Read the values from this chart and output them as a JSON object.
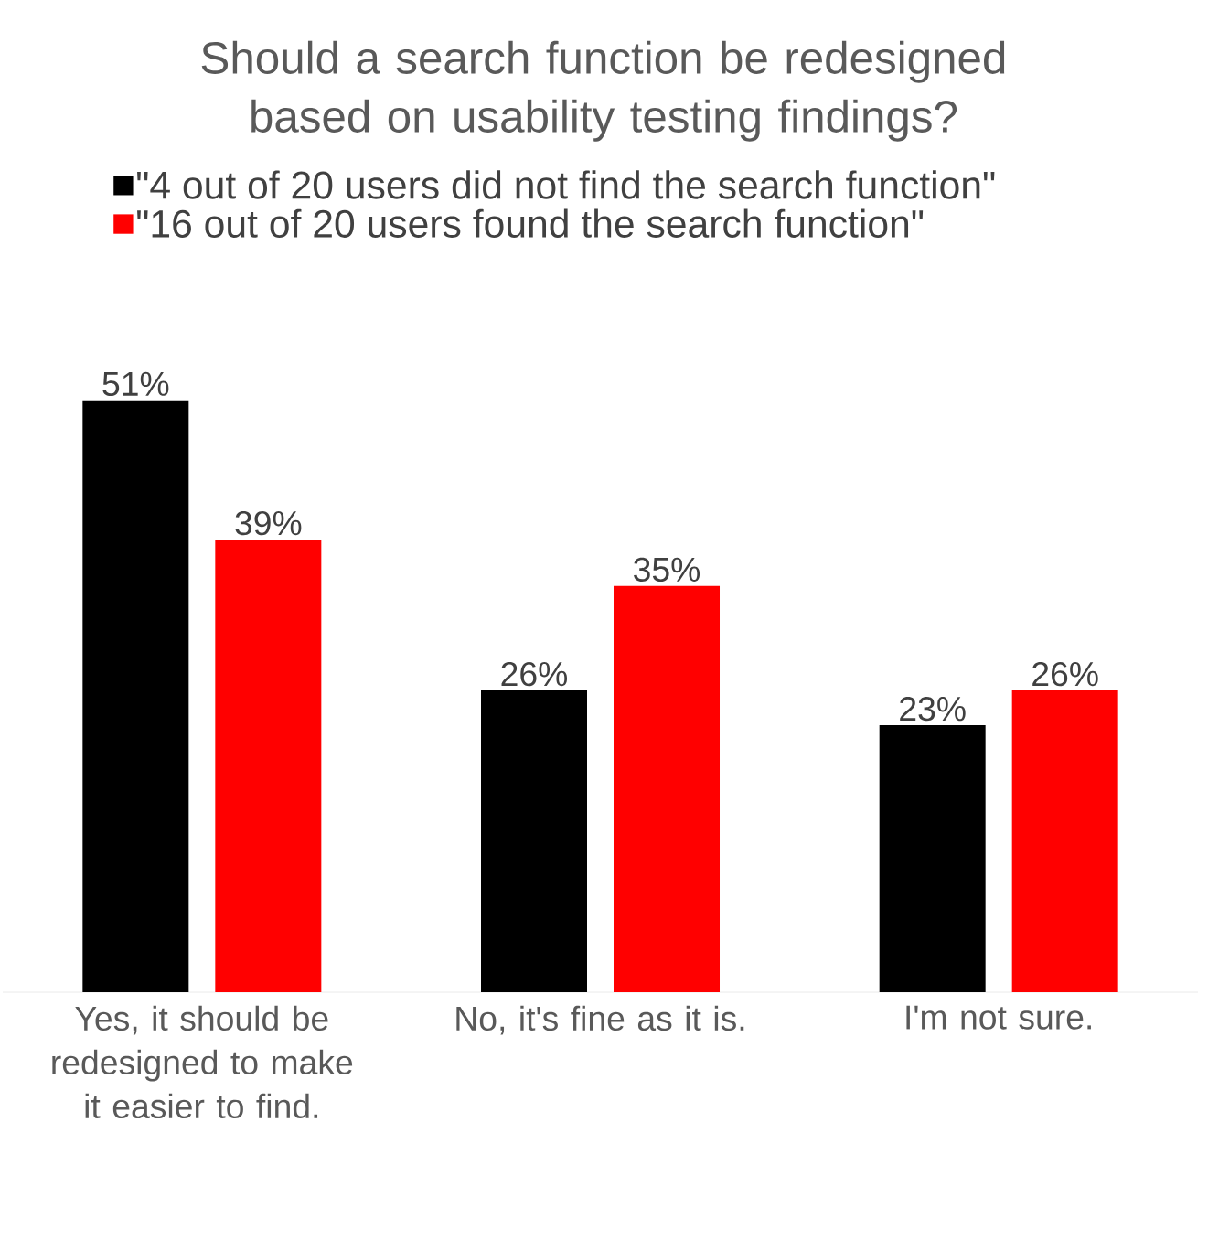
{
  "chart_data": {
    "type": "bar",
    "title": "Should a search function be redesigned based on usability testing findings?",
    "categories": [
      "Yes, it should be redesigned to make it easier to find.",
      "No, it's fine as it is.",
      "I'm not sure."
    ],
    "series": [
      {
        "name": "\"4 out of 20 users did not find the search function\"",
        "color": "#000000",
        "values": [
          51,
          26,
          23
        ],
        "value_labels": [
          "51%",
          "26%",
          "23%"
        ]
      },
      {
        "name": "\"16 out of 20 users found the search function\"",
        "color": "#ff0000",
        "values": [
          39,
          35,
          26
        ],
        "value_labels": [
          "39%",
          "35%",
          "26%"
        ]
      }
    ],
    "legend": "top left"
  }
}
